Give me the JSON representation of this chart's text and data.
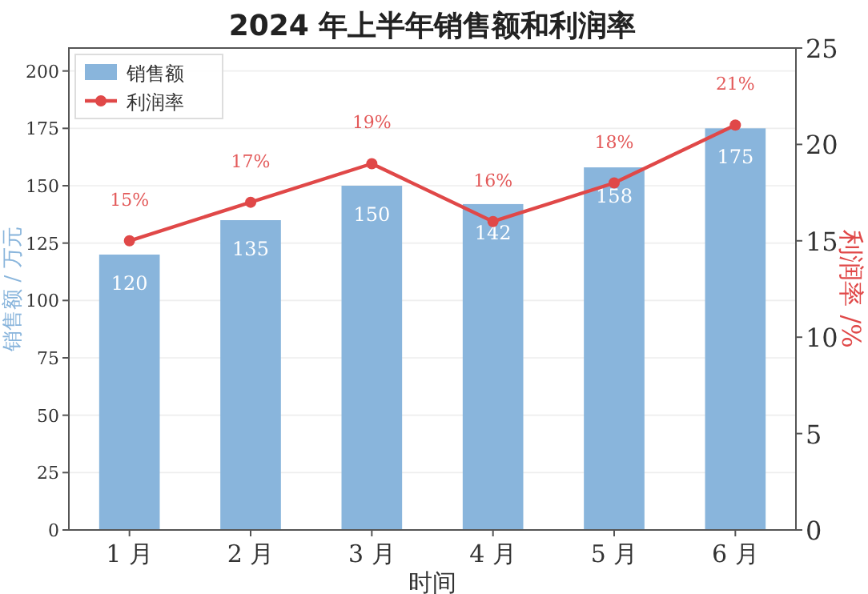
{
  "chart_data": {
    "type": "bar",
    "title": "2024 年上半年销售额和利润率",
    "xlabel": "时间",
    "ylabel": "销售额 / 万元",
    "y2label": "利润率 /%",
    "categories": [
      "1 月",
      "2 月",
      "3 月",
      "4 月",
      "5 月",
      "6 月"
    ],
    "series": [
      {
        "name": "销售额",
        "color": "#89b5dc",
        "values": [
          120,
          135,
          150,
          142,
          158,
          175
        ],
        "value_labels": [
          "120",
          "135",
          "150",
          "142",
          "158",
          "175"
        ]
      },
      {
        "name": "利润率",
        "type": "line",
        "axis": "y2",
        "color": "#e04848",
        "marker": "circle",
        "values": [
          15,
          17,
          19,
          16,
          18,
          21
        ],
        "value_labels": [
          "15%",
          "17%",
          "19%",
          "16%",
          "18%",
          "21%"
        ]
      }
    ],
    "ylim": [
      0,
      210
    ],
    "yticks": [
      0,
      25,
      50,
      75,
      100,
      125,
      150,
      175,
      200
    ],
    "y2lim": [
      0,
      25
    ],
    "y2ticks": [
      0,
      5,
      10,
      15,
      20,
      25
    ],
    "grid": "y",
    "legend": "top left"
  }
}
